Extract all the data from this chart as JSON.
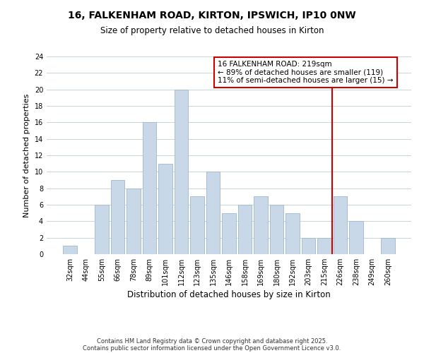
{
  "title": "16, FALKENHAM ROAD, KIRTON, IPSWICH, IP10 0NW",
  "subtitle": "Size of property relative to detached houses in Kirton",
  "xlabel": "Distribution of detached houses by size in Kirton",
  "ylabel": "Number of detached properties",
  "bar_labels": [
    "32sqm",
    "44sqm",
    "55sqm",
    "66sqm",
    "78sqm",
    "89sqm",
    "101sqm",
    "112sqm",
    "123sqm",
    "135sqm",
    "146sqm",
    "158sqm",
    "169sqm",
    "180sqm",
    "192sqm",
    "203sqm",
    "215sqm",
    "226sqm",
    "238sqm",
    "249sqm",
    "260sqm"
  ],
  "bar_heights": [
    1,
    0,
    6,
    9,
    8,
    16,
    11,
    20,
    7,
    10,
    5,
    6,
    7,
    6,
    5,
    2,
    2,
    7,
    4,
    0,
    2
  ],
  "bar_color": "#c8d8e8",
  "bar_edgecolor": "#a0b8cc",
  "vline_index": 16,
  "vline_color": "#cc0000",
  "annotation_text": "16 FALKENHAM ROAD: 219sqm\n← 89% of detached houses are smaller (119)\n11% of semi-detached houses are larger (15) →",
  "annotation_box_color": "#ffffff",
  "annotation_box_edgecolor": "#cc0000",
  "ylim": [
    0,
    24
  ],
  "yticks": [
    0,
    2,
    4,
    6,
    8,
    10,
    12,
    14,
    16,
    18,
    20,
    22,
    24
  ],
  "footer1": "Contains HM Land Registry data © Crown copyright and database right 2025.",
  "footer2": "Contains public sector information licensed under the Open Government Licence v3.0.",
  "title_fontsize": 10,
  "subtitle_fontsize": 8.5,
  "xlabel_fontsize": 8.5,
  "ylabel_fontsize": 8,
  "tick_fontsize": 7,
  "annotation_fontsize": 7.5,
  "footer_fontsize": 6,
  "background_color": "#ffffff",
  "grid_color": "#c8d4dc"
}
